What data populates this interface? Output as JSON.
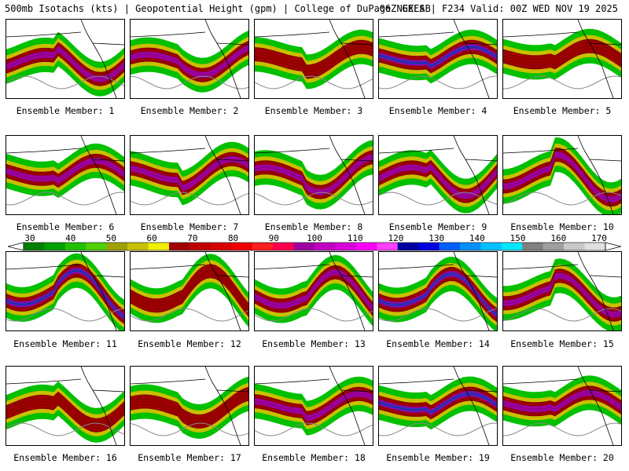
{
  "header": {
    "title_left": "500mb Isotachs (kts) | Geopotential Height (gpm) | College of DuPage NEXLAB",
    "title_right": "06Z GEFS | F234 Valid: 00Z WED NOV 19 2025"
  },
  "colorbar": {
    "ticks": [
      "30",
      "40",
      "50",
      "60",
      "70",
      "80",
      "90",
      "100",
      "110",
      "120",
      "130",
      "140",
      "150",
      "160",
      "170"
    ],
    "colors": [
      "#008000",
      "#00a000",
      "#22c000",
      "#50d000",
      "#a0a000",
      "#c8c000",
      "#f0f000",
      "#a00000",
      "#c00000",
      "#d80000",
      "#f00000",
      "#ff2020",
      "#ff0050",
      "#a000a0",
      "#c000c0",
      "#d800d8",
      "#ff00ff",
      "#ff40ff",
      "#0000a0",
      "#0000e0",
      "#0060ff",
      "#0090ff",
      "#00c0ff",
      "#00e8ff",
      "#808080",
      "#a0a0a0",
      "#c8c8c8",
      "#e0e0e0"
    ]
  },
  "members": [
    {
      "label": "Ensemble Member: 1",
      "max_speed_kts": 120
    },
    {
      "label": "Ensemble Member: 2",
      "max_speed_kts": 110
    },
    {
      "label": "Ensemble Member: 3",
      "max_speed_kts": 100
    },
    {
      "label": "Ensemble Member: 4",
      "max_speed_kts": 130
    },
    {
      "label": "Ensemble Member: 5",
      "max_speed_kts": 100
    },
    {
      "label": "Ensemble Member: 6",
      "max_speed_kts": 120
    },
    {
      "label": "Ensemble Member: 7",
      "max_speed_kts": 110
    },
    {
      "label": "Ensemble Member: 8",
      "max_speed_kts": 120
    },
    {
      "label": "Ensemble Member: 9",
      "max_speed_kts": 120
    },
    {
      "label": "Ensemble Member: 10",
      "max_speed_kts": 110
    },
    {
      "label": "Ensemble Member: 11",
      "max_speed_kts": 130
    },
    {
      "label": "Ensemble Member: 12",
      "max_speed_kts": 100
    },
    {
      "label": "Ensemble Member: 13",
      "max_speed_kts": 110
    },
    {
      "label": "Ensemble Member: 14",
      "max_speed_kts": 140
    },
    {
      "label": "Ensemble Member: 15",
      "max_speed_kts": 120
    },
    {
      "label": "Ensemble Member: 16",
      "max_speed_kts": 100
    },
    {
      "label": "Ensemble Member: 17",
      "max_speed_kts": 100
    },
    {
      "label": "Ensemble Member: 18",
      "max_speed_kts": 120
    },
    {
      "label": "Ensemble Member: 19",
      "max_speed_kts": 130
    },
    {
      "label": "Ensemble Member: 20",
      "max_speed_kts": 110
    }
  ]
}
